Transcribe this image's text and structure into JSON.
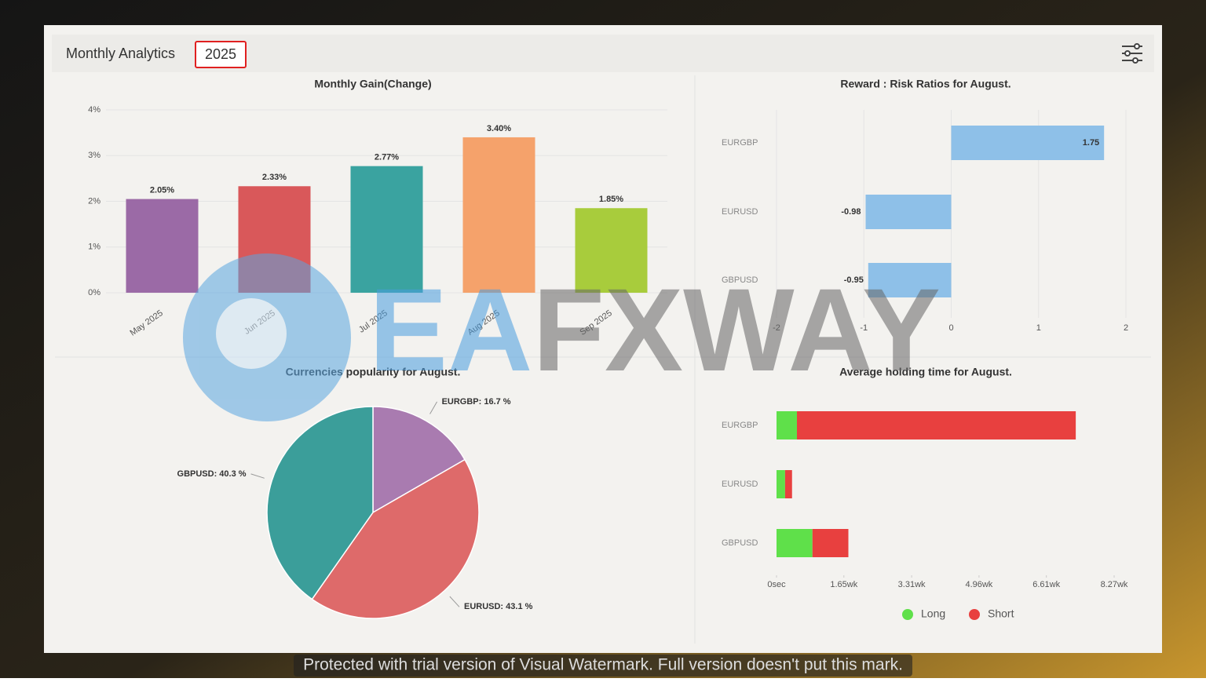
{
  "header": {
    "title": "Monthly Analytics",
    "year": "2025"
  },
  "watermark": {
    "part_a": "EA",
    "part_b": "FXWAY"
  },
  "notice": "Protected with trial version of Visual Watermark. Full version doesn't put this mark.",
  "chart_data": [
    {
      "type": "bar",
      "title": "Monthly Gain(Change)",
      "categories": [
        "May 2025",
        "Jun 2025",
        "Jul 2025",
        "Aug 2025",
        "Sep 2025"
      ],
      "values": [
        2.05,
        2.33,
        2.77,
        3.4,
        1.85
      ],
      "value_labels": [
        "2.05%",
        "2.33%",
        "2.77%",
        "3.40%",
        "1.85%"
      ],
      "colors": [
        "#9b6aa6",
        "#d9585a",
        "#3aa3a0",
        "#f5a26b",
        "#a8cc3c"
      ],
      "ylim": [
        0,
        4
      ],
      "yticks": [
        {
          "value": 0,
          "label": "0%"
        },
        {
          "value": 1,
          "label": "1%"
        },
        {
          "value": 2,
          "label": "2%"
        },
        {
          "value": 3,
          "label": "3%"
        },
        {
          "value": 4,
          "label": "4%"
        }
      ],
      "grid": true
    },
    {
      "type": "hbar",
      "title": "Reward : Risk Ratios for August.",
      "categories": [
        "EURGBP",
        "EURUSD",
        "GBPUSD"
      ],
      "values": [
        1.75,
        -0.98,
        -0.95
      ],
      "color": "#8ec0e8",
      "xlim": [
        -2,
        2
      ],
      "xticks": [
        -2,
        -1,
        0,
        1,
        2
      ],
      "grid": true
    },
    {
      "type": "pie",
      "title": "Currencies popularity for August.",
      "categories": [
        "EURGBP",
        "EURUSD",
        "GBPUSD"
      ],
      "values": [
        16.7,
        43.1,
        40.3
      ],
      "value_labels": [
        "EURGBP: 16.7 %",
        "EURUSD: 43.1 %",
        "GBPUSD: 40.3 %"
      ],
      "colors": [
        "#a97bb0",
        "#de6a6a",
        "#3b9e9a"
      ]
    },
    {
      "type": "stacked_hbar",
      "title": "Average holding time for August.",
      "categories": [
        "EURGBP",
        "EURUSD",
        "GBPUSD"
      ],
      "series": [
        {
          "name": "Long",
          "color": "#5fe04a",
          "values": [
            0.5,
            0.21,
            0.88
          ]
        },
        {
          "name": "Short",
          "color": "#e8403f",
          "values": [
            6.83,
            0.17,
            0.88
          ]
        }
      ],
      "xlim": [
        0,
        8.27
      ],
      "xticks": [
        {
          "value": 0,
          "label": "0sec"
        },
        {
          "value": 1.65,
          "label": "1.65wk"
        },
        {
          "value": 3.31,
          "label": "3.31wk"
        },
        {
          "value": 4.96,
          "label": "4.96wk"
        },
        {
          "value": 6.61,
          "label": "6.61wk"
        },
        {
          "value": 8.27,
          "label": "8.27wk"
        }
      ],
      "legend": "bottom"
    }
  ]
}
